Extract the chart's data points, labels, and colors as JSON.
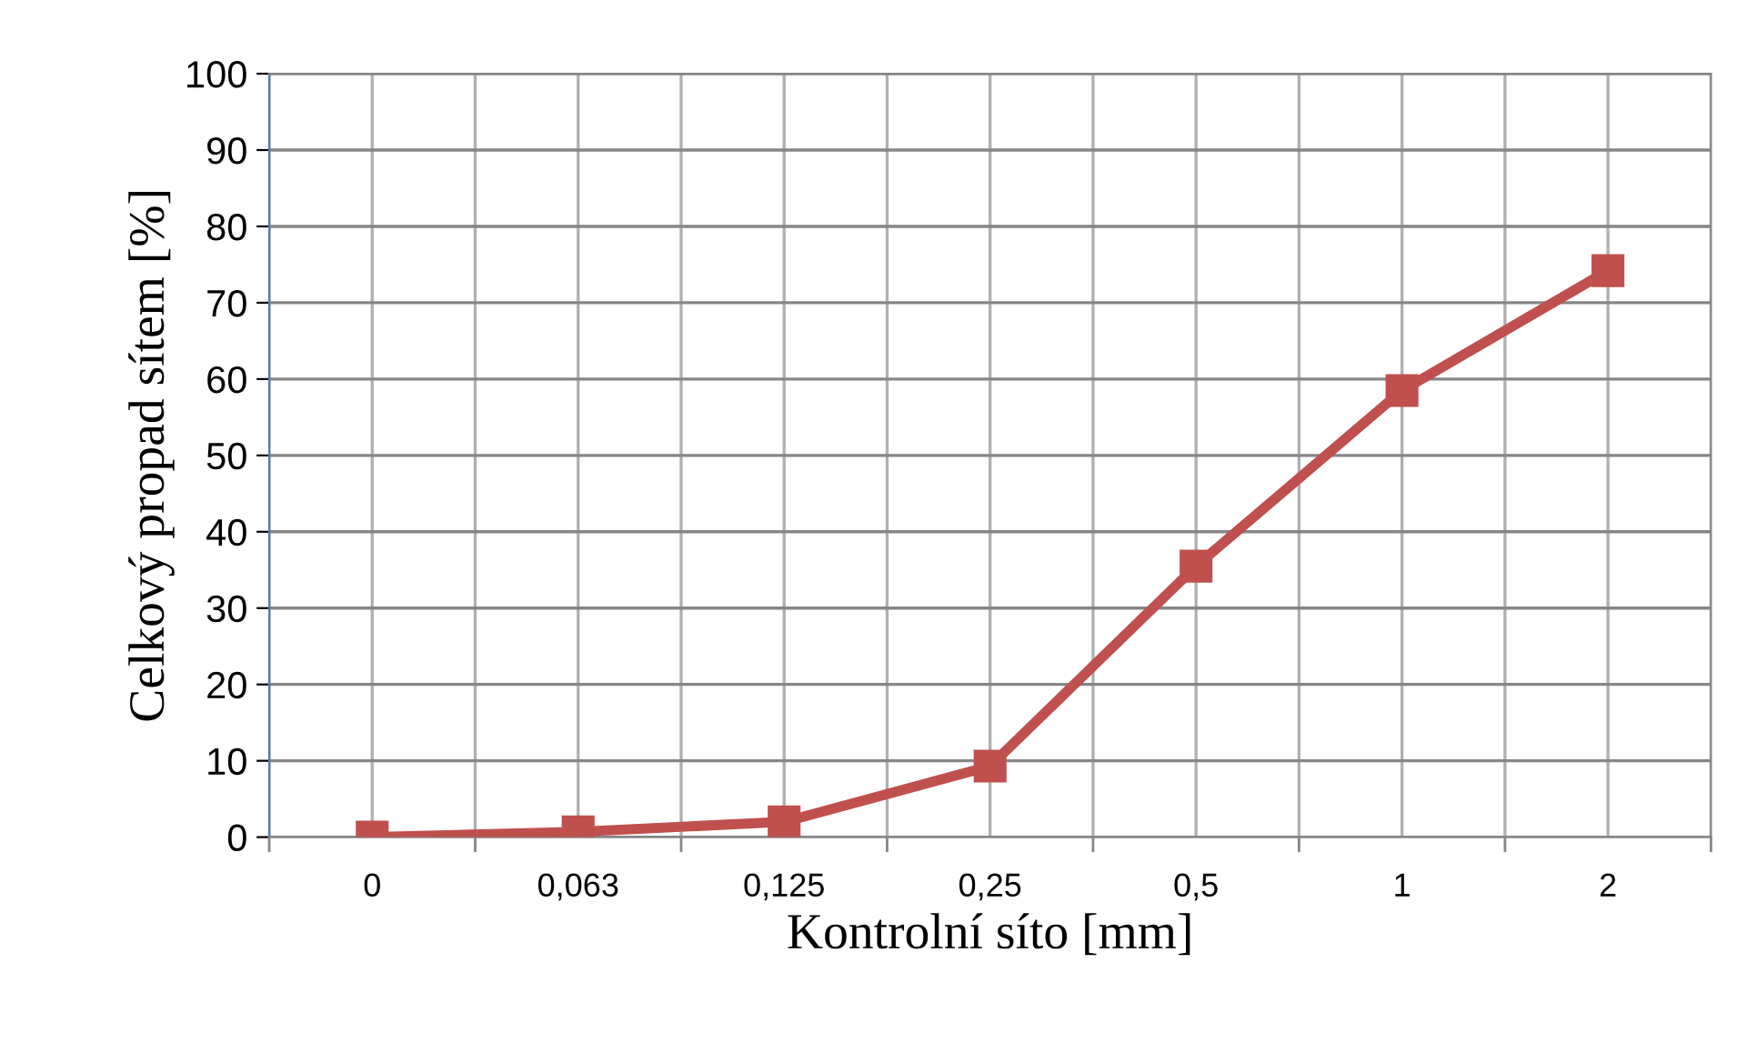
{
  "chart_data": {
    "type": "line",
    "xlabel": "Kontrolní síto [mm]",
    "ylabel": "Celkový propad sítem [%]",
    "categories": [
      "0",
      "0,063",
      "0,125",
      "0,25",
      "0,5",
      "1",
      "2"
    ],
    "series": [
      {
        "color": "#c0504d",
        "values": [
          0,
          0.7,
          2.0,
          9.3,
          35.5,
          58.5,
          74.2
        ]
      }
    ],
    "ylim": [
      0,
      100
    ],
    "yticks": [
      0,
      10,
      20,
      30,
      40,
      50,
      60,
      70,
      80,
      90,
      100
    ],
    "grid": true,
    "marker": "square",
    "line_style": "solid"
  }
}
